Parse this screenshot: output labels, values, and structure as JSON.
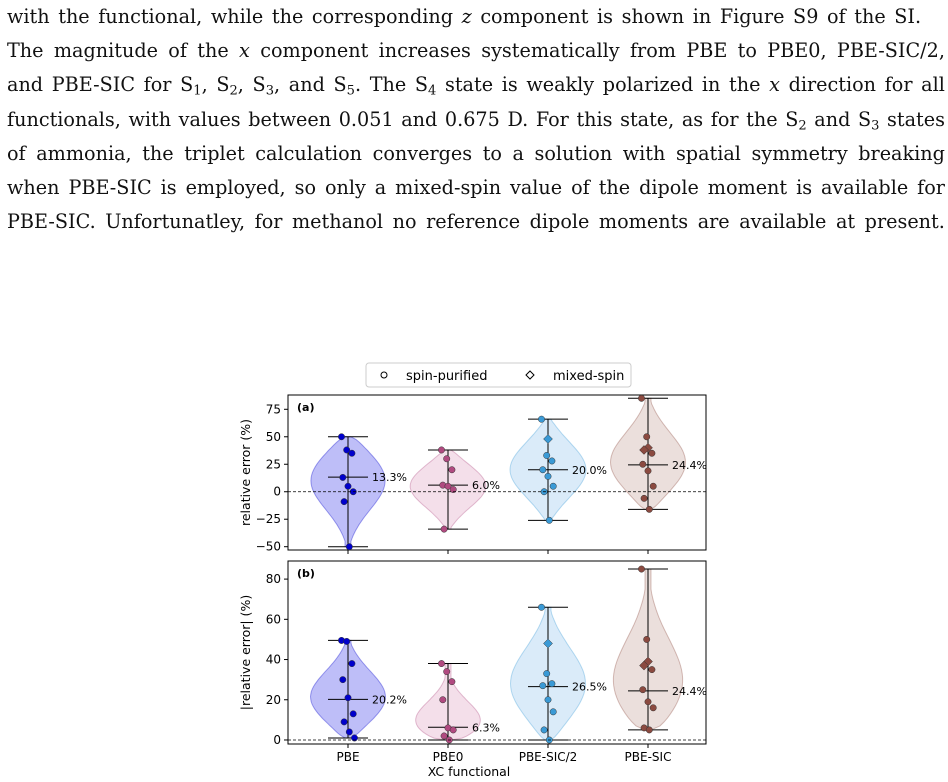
{
  "paragraph": {
    "lines": [
      {
        "segments": [
          {
            "t": "with the functional, while the corresponding "
          },
          {
            "t": "z",
            "i": true
          },
          {
            "t": " component is shown in Figure S9 of the SI."
          }
        ],
        "justify": false
      },
      {
        "segments": [
          {
            "t": "The magnitude of the "
          },
          {
            "t": "x",
            "i": true
          },
          {
            "t": " component increases systematically from PBE to PBE0, PBE-SIC/2,"
          }
        ],
        "justify": true
      },
      {
        "segments": [
          {
            "t": "and PBE-SIC for S"
          },
          {
            "sub": "1"
          },
          {
            "t": ", S"
          },
          {
            "sub": "2"
          },
          {
            "t": ", S"
          },
          {
            "sub": "3"
          },
          {
            "t": ", and S"
          },
          {
            "sub": "5"
          },
          {
            "t": ". The S"
          },
          {
            "sub": "4"
          },
          {
            "t": " state is weakly polarized in the "
          },
          {
            "t": "x",
            "i": true
          },
          {
            "t": " direction for all"
          }
        ],
        "justify": true
      },
      {
        "segments": [
          {
            "t": "functionals, with values between 0.051 and 0.675 D. For this state, as for the S"
          },
          {
            "sub": "2"
          },
          {
            "t": " and S"
          },
          {
            "sub": "3"
          },
          {
            "t": " states"
          }
        ],
        "justify": true
      },
      {
        "segments": [
          {
            "t": "of ammonia, the triplet calculation converges to a solution with spatial symmetry breaking"
          }
        ],
        "justify": true
      },
      {
        "segments": [
          {
            "t": "when PBE-SIC is employed, so only a mixed-spin value of the dipole moment is available for"
          }
        ],
        "justify": true
      },
      {
        "segments": [
          {
            "t": "PBE-SIC. Unfortunatley, for methanol no reference dipole moments are available at present."
          }
        ],
        "justify": true
      }
    ]
  },
  "chart_data": [
    {
      "type": "violin",
      "panel_label": "(a)",
      "xlabel": "",
      "ylabel": "relative error (%)",
      "ylim": [
        -53,
        88
      ],
      "yticks": [
        -50,
        -25,
        0,
        25,
        50,
        75
      ],
      "categories": [
        "PBE",
        "PBE0",
        "PBE-SIC/2",
        "PBE-SIC"
      ],
      "median_labels": [
        "13.3%",
        "6.0%",
        "20.0%",
        "24.4%"
      ],
      "reference_line": 0,
      "series": [
        {
          "category": "PBE",
          "color": "#0000cc",
          "fill": "#b3b3f7",
          "min": -50,
          "max": 50,
          "median": 13.3,
          "spin_purified": [
            50,
            38,
            35,
            13,
            5,
            0,
            -9,
            -50
          ],
          "mixed_spin": []
        },
        {
          "category": "PBE0",
          "color": "#b04a80",
          "fill": "#f2d9e6",
          "min": -34,
          "max": 38,
          "median": 6.0,
          "spin_purified": [
            38,
            30,
            20,
            6,
            5,
            2,
            -34
          ],
          "mixed_spin": []
        },
        {
          "category": "PBE-SIC/2",
          "color": "#3a9ad6",
          "fill": "#d3e8f8",
          "min": -26,
          "max": 66,
          "median": 20.0,
          "spin_purified": [
            66,
            33,
            28,
            20,
            14,
            5,
            0,
            -26
          ],
          "mixed_spin": [
            48
          ]
        },
        {
          "category": "PBE-SIC",
          "color": "#8b4a40",
          "fill": "#e8d9d6",
          "min": -16,
          "max": 85,
          "median": 24.4,
          "spin_purified": [
            85,
            50,
            35,
            25,
            19,
            5,
            -6,
            -16
          ],
          "mixed_spin": [
            40,
            38
          ]
        }
      ]
    },
    {
      "type": "violin",
      "panel_label": "(b)",
      "xlabel": "XC functional",
      "ylabel": "|relative error| (%)",
      "ylim": [
        -2,
        89
      ],
      "yticks": [
        0,
        20,
        40,
        60,
        80
      ],
      "categories": [
        "PBE",
        "PBE0",
        "PBE-SIC/2",
        "PBE-SIC"
      ],
      "median_labels": [
        "20.2%",
        "6.3%",
        "26.5%",
        "24.4%"
      ],
      "reference_line": 0,
      "series": [
        {
          "category": "PBE",
          "color": "#0000cc",
          "fill": "#b3b3f7",
          "min": 1,
          "max": 49.5,
          "median": 20.2,
          "spin_purified": [
            49.5,
            49,
            38,
            30,
            21,
            13,
            9,
            4,
            1
          ],
          "mixed_spin": []
        },
        {
          "category": "PBE0",
          "color": "#b04a80",
          "fill": "#f2d9e6",
          "min": 0,
          "max": 38,
          "median": 6.3,
          "spin_purified": [
            38,
            34,
            29,
            20,
            6,
            5,
            2,
            0
          ],
          "mixed_spin": []
        },
        {
          "category": "PBE-SIC/2",
          "color": "#3a9ad6",
          "fill": "#d3e8f8",
          "min": 0,
          "max": 66,
          "median": 26.5,
          "spin_purified": [
            66,
            33,
            28,
            27,
            20,
            14,
            5,
            0
          ],
          "mixed_spin": [
            48
          ]
        },
        {
          "category": "PBE-SIC",
          "color": "#8b4a40",
          "fill": "#e8d9d6",
          "min": 5,
          "max": 85,
          "median": 24.4,
          "spin_purified": [
            85,
            50,
            35,
            25,
            19,
            16,
            6,
            5
          ],
          "mixed_spin": [
            39,
            37
          ]
        }
      ]
    }
  ],
  "legend": {
    "items": [
      {
        "label": "spin-purified",
        "marker": "circle"
      },
      {
        "label": "mixed-spin",
        "marker": "diamond"
      }
    ]
  }
}
